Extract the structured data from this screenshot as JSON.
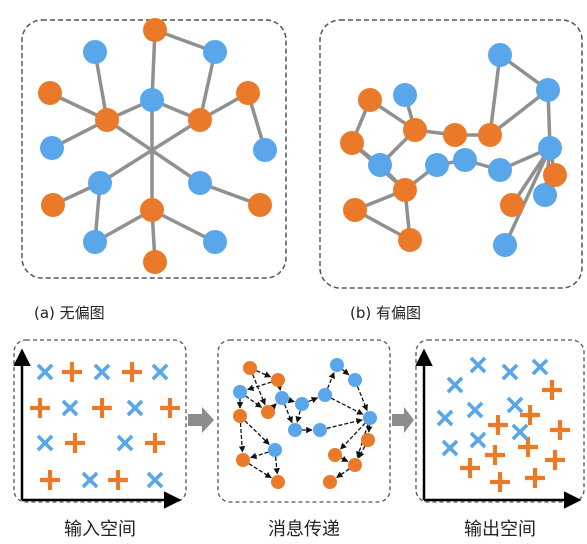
{
  "colors": {
    "orange": "#ea7a2a",
    "blue": "#5aa6ea",
    "edge": "#909090",
    "arrow": "#111111",
    "border": "#555555"
  },
  "labels": {
    "graph_a": "(a) 无偏图",
    "graph_b": "(b) 有偏图",
    "input_space": "输入空间",
    "message_passing": "消息传递",
    "output_space": "输出空间"
  },
  "icons": {
    "orange_marker": "plus-icon",
    "blue_marker": "cross-icon"
  }
}
